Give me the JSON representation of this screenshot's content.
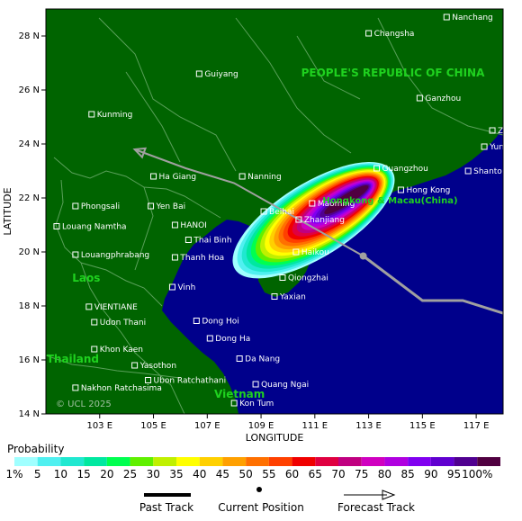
{
  "map": {
    "lon_range": [
      101,
      118
    ],
    "lat_range": [
      14,
      29
    ],
    "x_ticks": [
      {
        "v": 103,
        "label": "103 E"
      },
      {
        "v": 105,
        "label": "105 E"
      },
      {
        "v": 107,
        "label": "107 E"
      },
      {
        "v": 109,
        "label": "109 E"
      },
      {
        "v": 111,
        "label": "111 E"
      },
      {
        "v": 113,
        "label": "113 E"
      },
      {
        "v": 115,
        "label": "115 E"
      },
      {
        "v": 117,
        "label": "117 E"
      }
    ],
    "y_ticks": [
      {
        "v": 14,
        "label": "14 N"
      },
      {
        "v": 16,
        "label": "16 N"
      },
      {
        "v": 18,
        "label": "18 N"
      },
      {
        "v": 20,
        "label": "20 N"
      },
      {
        "v": 22,
        "label": "22 N"
      },
      {
        "v": 24,
        "label": "24 N"
      },
      {
        "v": 26,
        "label": "26 N"
      },
      {
        "v": 28,
        "label": "28 N"
      }
    ],
    "xlabel": "LONGITUDE",
    "ylabel": "LATITUDE",
    "copyright": "© UCL 2025",
    "land_color": "#006400",
    "sea_color": "#00008b",
    "border_color": "#5aa05a"
  },
  "cities": [
    {
      "name": "Nanchang",
      "lon": 115.9,
      "lat": 28.7
    },
    {
      "name": "Changsha",
      "lon": 113.0,
      "lat": 28.1
    },
    {
      "name": "Guiyang",
      "lon": 106.7,
      "lat": 26.6
    },
    {
      "name": "Ganzhou",
      "lon": 114.9,
      "lat": 25.7
    },
    {
      "name": "Kunming",
      "lon": 102.7,
      "lat": 25.1
    },
    {
      "name": "Zhangzhou",
      "lon": 117.6,
      "lat": 24.5
    },
    {
      "name": "Yunxiao",
      "lon": 117.3,
      "lat": 23.9
    },
    {
      "name": "Guangzhou",
      "lon": 113.3,
      "lat": 23.1
    },
    {
      "name": "Shantou",
      "lon": 116.7,
      "lat": 23.0
    },
    {
      "name": "Ha Giang",
      "lon": 105.0,
      "lat": 22.8
    },
    {
      "name": "Nanning",
      "lon": 108.3,
      "lat": 22.8
    },
    {
      "name": "Maoming",
      "lon": 110.9,
      "lat": 21.8
    },
    {
      "name": "Hong Kong",
      "lon": 114.2,
      "lat": 22.3
    },
    {
      "name": "Phongsali",
      "lon": 102.1,
      "lat": 21.7
    },
    {
      "name": "Yen Bai",
      "lon": 104.9,
      "lat": 21.7
    },
    {
      "name": "Beihai",
      "lon": 109.1,
      "lat": 21.5
    },
    {
      "name": "Zhanjiang",
      "lon": 110.4,
      "lat": 21.2
    },
    {
      "name": "HANOI",
      "lon": 105.8,
      "lat": 21.0
    },
    {
      "name": "Louang Namtha",
      "lon": 101.4,
      "lat": 20.95
    },
    {
      "name": "Thai Binh",
      "lon": 106.3,
      "lat": 20.45
    },
    {
      "name": "Haikou",
      "lon": 110.3,
      "lat": 20.0
    },
    {
      "name": "Louangphrabang",
      "lon": 102.1,
      "lat": 19.9
    },
    {
      "name": "Thanh Hoa",
      "lon": 105.8,
      "lat": 19.8
    },
    {
      "name": "Qiongzhai",
      "lon": 109.8,
      "lat": 19.05
    },
    {
      "name": "Vinh",
      "lon": 105.7,
      "lat": 18.7
    },
    {
      "name": "Yaxian",
      "lon": 109.5,
      "lat": 18.35
    },
    {
      "name": "VIENTIANE",
      "lon": 102.6,
      "lat": 17.97
    },
    {
      "name": "Udon Thani",
      "lon": 102.8,
      "lat": 17.4
    },
    {
      "name": "Dong Hoi",
      "lon": 106.6,
      "lat": 17.45
    },
    {
      "name": "Dong Ha",
      "lon": 107.1,
      "lat": 16.8
    },
    {
      "name": "Khon Kaen",
      "lon": 102.8,
      "lat": 16.4
    },
    {
      "name": "Da Nang",
      "lon": 108.2,
      "lat": 16.05
    },
    {
      "name": "Yasothon",
      "lon": 104.3,
      "lat": 15.8
    },
    {
      "name": "Ubon Ratchathani",
      "lon": 104.8,
      "lat": 15.25
    },
    {
      "name": "Nakhon Ratchasima",
      "lon": 102.1,
      "lat": 14.97
    },
    {
      "name": "Quang Ngai",
      "lon": 108.8,
      "lat": 15.1
    },
    {
      "name": "Kon Tum",
      "lon": 108.0,
      "lat": 14.4
    }
  ],
  "countries": [
    {
      "name": "PEOPLE'S REPUBLIC OF CHINA",
      "lon": 113.9,
      "lat": 26.5
    },
    {
      "name": "Hongkong & Macau(China)",
      "lon": 113.8,
      "lat": 21.8
    },
    {
      "name": "Laos",
      "lon": 102.5,
      "lat": 18.9
    },
    {
      "name": "Thailand",
      "lon": 102.0,
      "lat": 15.9
    },
    {
      "name": "Vietnam",
      "lon": 108.2,
      "lat": 14.6
    }
  ],
  "track": {
    "past": [
      [
        118.1,
        17.7
      ],
      [
        116.5,
        18.2
      ],
      [
        115.0,
        18.2
      ],
      [
        112.8,
        19.85
      ]
    ],
    "current": [
      112.8,
      19.85
    ],
    "forecast": [
      [
        112.8,
        19.85
      ],
      [
        110.5,
        21.15
      ],
      [
        108.0,
        22.55
      ],
      [
        106.2,
        23.1
      ],
      [
        104.3,
        23.8
      ]
    ],
    "color": "#a0a0a0"
  },
  "legend": {
    "title": "Probability",
    "labels": [
      "1%",
      "5",
      "10",
      "15",
      "20",
      "25",
      "30",
      "35",
      "40",
      "45",
      "50",
      "55",
      "60",
      "65",
      "70",
      "75",
      "80",
      "85",
      "90",
      "95",
      "100%"
    ],
    "colors": [
      "#a0ffff",
      "#50f0f0",
      "#20e8d0",
      "#00e8a0",
      "#00ff50",
      "#60f000",
      "#c0f000",
      "#ffff00",
      "#ffd000",
      "#ffa000",
      "#ff7000",
      "#ff4000",
      "#f00000",
      "#e00040",
      "#c00080",
      "#d000c0",
      "#b000e0",
      "#8000f0",
      "#6000d0",
      "#500090",
      "#500040"
    ],
    "items": {
      "past": "Past Track",
      "current": "Current Position",
      "forecast": "Forecast Track"
    }
  }
}
